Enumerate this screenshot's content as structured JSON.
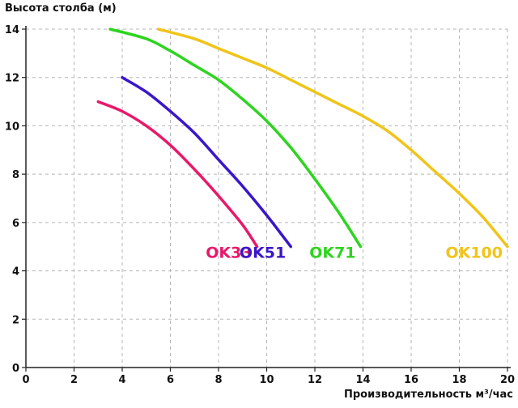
{
  "chart_data": {
    "type": "line",
    "ylabel": "Высота столба (м)",
    "xlabel": "Производительность м³/час",
    "xlim": [
      0,
      20
    ],
    "ylim": [
      0,
      14
    ],
    "x_ticks": [
      "0",
      "2",
      "4",
      "6",
      "8",
      "10",
      "12",
      "14",
      "16",
      "18",
      "20"
    ],
    "y_ticks": [
      "0",
      "2",
      "4",
      "6",
      "8",
      "10",
      "12",
      "14"
    ],
    "grid": "dashed",
    "series": [
      {
        "name": "OK33",
        "color": "#e8196a",
        "points": [
          [
            3.0,
            11.0
          ],
          [
            4.0,
            10.6
          ],
          [
            5.0,
            10.0
          ],
          [
            6.0,
            9.2
          ],
          [
            7.0,
            8.2
          ],
          [
            8.0,
            7.1
          ],
          [
            9.0,
            5.9
          ],
          [
            9.6,
            5.0
          ]
        ]
      },
      {
        "name": "OK51",
        "color": "#3a17c9",
        "points": [
          [
            4.0,
            12.0
          ],
          [
            5.0,
            11.4
          ],
          [
            6.0,
            10.6
          ],
          [
            7.0,
            9.7
          ],
          [
            8.0,
            8.6
          ],
          [
            9.0,
            7.5
          ],
          [
            10.0,
            6.3
          ],
          [
            11.0,
            5.0
          ]
        ]
      },
      {
        "name": "OK71",
        "color": "#2ed41f",
        "points": [
          [
            3.5,
            14.0
          ],
          [
            5.0,
            13.6
          ],
          [
            6.0,
            13.1
          ],
          [
            7.0,
            12.5
          ],
          [
            8.0,
            11.9
          ],
          [
            9.0,
            11.1
          ],
          [
            10.0,
            10.2
          ],
          [
            11.0,
            9.1
          ],
          [
            12.0,
            7.8
          ],
          [
            13.0,
            6.4
          ],
          [
            13.9,
            5.0
          ]
        ]
      },
      {
        "name": "OK100",
        "color": "#f0c419",
        "points": [
          [
            5.5,
            14.0
          ],
          [
            7.0,
            13.6
          ],
          [
            8.0,
            13.2
          ],
          [
            9.0,
            12.8
          ],
          [
            10.0,
            12.4
          ],
          [
            11.0,
            11.9
          ],
          [
            12.0,
            11.4
          ],
          [
            13.0,
            10.9
          ],
          [
            14.0,
            10.4
          ],
          [
            15.0,
            9.8
          ],
          [
            16.0,
            9.0
          ],
          [
            17.0,
            8.1
          ],
          [
            18.0,
            7.2
          ],
          [
            19.0,
            6.2
          ],
          [
            20.0,
            5.0
          ]
        ]
      }
    ]
  }
}
